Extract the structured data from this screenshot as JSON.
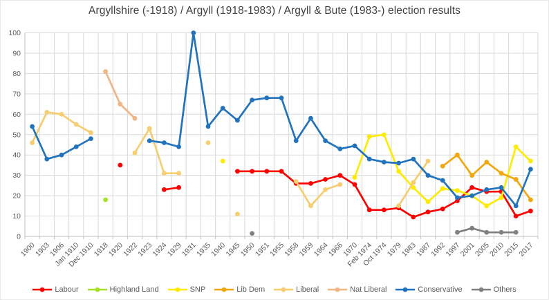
{
  "chart_data": {
    "type": "line",
    "title": "Argyllshire (-1918) / Argyll (1918-1983) / Argyll & Bute (1983-) election results",
    "xlabel": "",
    "ylabel": "",
    "ylim": [
      0,
      100
    ],
    "ytick_step": 10,
    "grid": true,
    "legend_position": "bottom",
    "colors": {
      "grid": "#d9d9d9",
      "axis": "#bfbfbf",
      "tick_text": "#595959",
      "title_text": "#3f3f3f"
    },
    "categories": [
      "1900",
      "1903",
      "1906",
      "Jan 1910",
      "Dec 1910",
      "1918",
      "1920",
      "1922",
      "1923",
      "1924",
      "1929",
      "1931",
      "1935",
      "1940",
      "1945",
      "1950",
      "1951",
      "1955",
      "1958",
      "1959",
      "1964",
      "1966",
      "1970",
      "Feb 1974",
      "Oct 1974",
      "1979",
      "1983",
      "1987",
      "1992",
      "1997",
      "2001",
      "2005",
      "2010",
      "2015",
      "2017"
    ],
    "series": [
      {
        "name": "Labour",
        "color": "#ff0000",
        "values": [
          null,
          null,
          null,
          null,
          null,
          null,
          35,
          null,
          null,
          23,
          24,
          null,
          null,
          null,
          32,
          32,
          32,
          32,
          26,
          26,
          28,
          30,
          25.5,
          13,
          13,
          14,
          9.5,
          12,
          13.5,
          17.5,
          24,
          22,
          22,
          10,
          12.5
        ]
      },
      {
        "name": "Highland Land",
        "color": "#a8e228",
        "values": [
          null,
          null,
          null,
          null,
          null,
          18,
          null,
          null,
          null,
          null,
          null,
          null,
          null,
          null,
          null,
          null,
          null,
          null,
          null,
          null,
          null,
          null,
          null,
          null,
          null,
          null,
          null,
          null,
          null,
          null,
          null,
          null,
          null,
          null,
          null
        ]
      },
      {
        "name": "SNP",
        "color": "#ffeb00",
        "values": [
          null,
          null,
          null,
          null,
          null,
          null,
          null,
          null,
          null,
          null,
          null,
          null,
          null,
          37,
          null,
          null,
          null,
          null,
          null,
          null,
          null,
          null,
          29,
          49,
          50,
          32,
          24,
          17,
          23.5,
          22.5,
          20,
          15,
          19,
          44,
          37
        ]
      },
      {
        "name": "Lib Dem",
        "color": "#f2a70d",
        "values": [
          null,
          null,
          null,
          null,
          null,
          null,
          null,
          null,
          null,
          null,
          null,
          null,
          null,
          null,
          null,
          null,
          null,
          null,
          null,
          null,
          null,
          null,
          null,
          null,
          null,
          null,
          null,
          null,
          34.5,
          40,
          30,
          36.5,
          31,
          28,
          18
        ]
      },
      {
        "name": "Liberal",
        "color": "#f6cd6f",
        "values": [
          46,
          61,
          60,
          55,
          51,
          null,
          null,
          41,
          53,
          31,
          31,
          null,
          46,
          null,
          11,
          null,
          null,
          null,
          27,
          15,
          23,
          25.5,
          null,
          null,
          null,
          15,
          26.5,
          37,
          null,
          null,
          null,
          null,
          null,
          null,
          null
        ]
      },
      {
        "name": "Nat Liberal",
        "color": "#f0b584",
        "values": [
          null,
          null,
          null,
          null,
          null,
          81,
          65,
          58,
          null,
          null,
          null,
          null,
          null,
          null,
          null,
          null,
          null,
          null,
          null,
          null,
          null,
          null,
          null,
          null,
          null,
          null,
          null,
          null,
          null,
          null,
          null,
          null,
          null,
          null,
          null
        ]
      },
      {
        "name": "Conservative",
        "color": "#2173be",
        "values": [
          54,
          38,
          40,
          44,
          48,
          null,
          null,
          null,
          47,
          46,
          44,
          100,
          54,
          63,
          57,
          67,
          68,
          68,
          47,
          58,
          47,
          43,
          44.5,
          38,
          36.5,
          36,
          38,
          30,
          27.5,
          19,
          20,
          23,
          24,
          15,
          33
        ]
      },
      {
        "name": "Others",
        "color": "#808080",
        "values": [
          null,
          null,
          null,
          null,
          null,
          null,
          null,
          null,
          null,
          null,
          null,
          null,
          null,
          null,
          null,
          1.5,
          null,
          null,
          null,
          null,
          null,
          null,
          null,
          null,
          null,
          null,
          null,
          null,
          null,
          2,
          4,
          2,
          2,
          2,
          null
        ]
      }
    ]
  }
}
